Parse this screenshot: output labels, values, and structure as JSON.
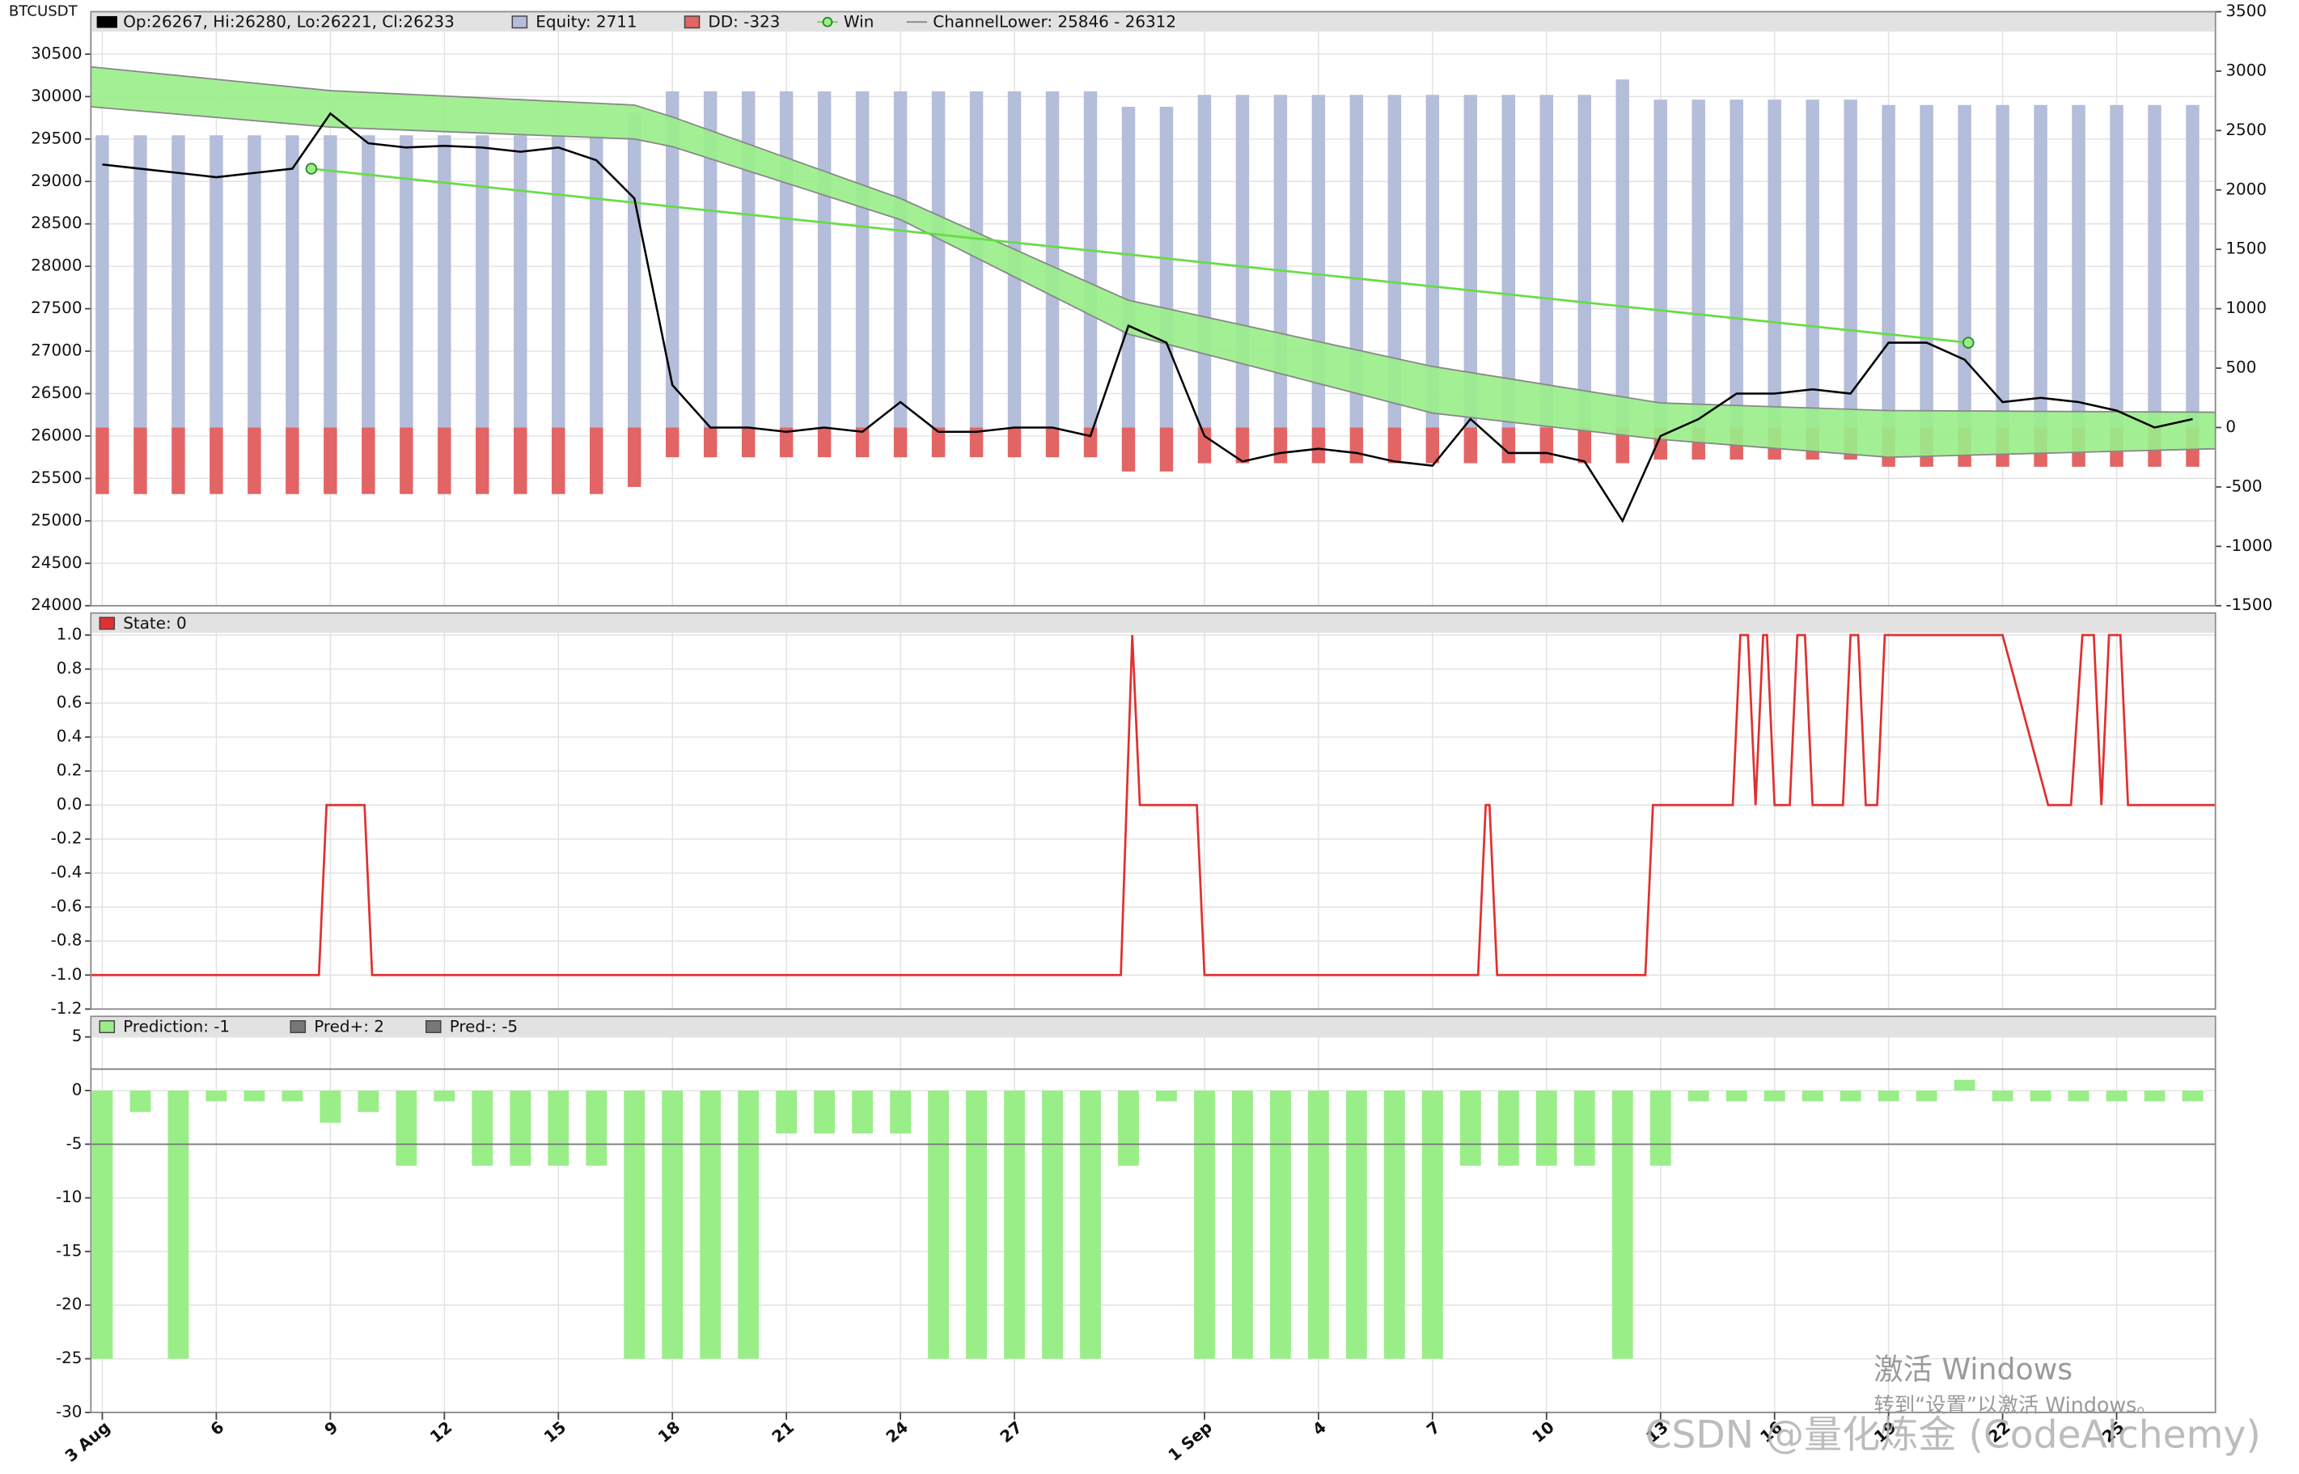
{
  "chart_data": [
    {
      "type": "combo",
      "title": "BTCUSDT",
      "x": [
        0,
        1,
        2,
        3,
        4,
        5,
        6,
        7,
        8,
        9,
        10,
        11,
        12,
        13,
        14,
        15,
        16,
        17,
        18,
        19,
        20,
        21,
        22,
        23,
        24,
        25,
        26,
        27,
        28,
        29,
        30,
        31,
        32,
        33,
        34,
        35,
        36,
        37,
        38,
        39,
        40,
        41,
        42,
        43,
        44,
        45,
        46,
        47,
        48,
        49,
        50,
        51,
        52,
        53,
        54,
        55
      ],
      "ylim": [
        24000,
        31000
      ],
      "yticks": [
        24000,
        24500,
        25000,
        25500,
        26000,
        26500,
        27000,
        27500,
        28000,
        28500,
        29000,
        29500,
        30000,
        30500
      ],
      "y2lim": [
        -1500,
        3500
      ],
      "y2ticks": [
        -1500,
        -1000,
        -500,
        0,
        500,
        1000,
        1500,
        2000,
        2500,
        3000,
        3500
      ],
      "grid": true,
      "series": [
        {
          "name": "Op:26267, Hi:26280, Lo:26221, Cl:26233",
          "kind": "line",
          "color": "#000000",
          "values": [
            29200,
            29150,
            29100,
            29050,
            29100,
            29150,
            29800,
            29450,
            29400,
            29420,
            29400,
            29350,
            29400,
            29250,
            28800,
            26600,
            26100,
            26100,
            26050,
            26100,
            26050,
            26400,
            26050,
            26050,
            26100,
            26100,
            26000,
            27300,
            27100,
            26000,
            25700,
            25800,
            25850,
            25800,
            25700,
            25650,
            26200,
            25800,
            25800,
            25700,
            25000,
            26000,
            26200,
            26500,
            26500,
            26550,
            26500,
            27100,
            27100,
            26900,
            26400,
            26450,
            26400,
            26300,
            26100,
            26200
          ]
        },
        {
          "name": "Equity: 2711",
          "kind": "bar",
          "axis": "y2",
          "color": "#b4bdd9",
          "values": [
            2460,
            2460,
            2460,
            2460,
            2460,
            2460,
            2460,
            2460,
            2460,
            2460,
            2460,
            2460,
            2460,
            2460,
            2650,
            2830,
            2830,
            2830,
            2830,
            2830,
            2830,
            2830,
            2830,
            2830,
            2830,
            2830,
            2830,
            2700,
            2700,
            2800,
            2800,
            2800,
            2800,
            2800,
            2800,
            2800,
            2800,
            2800,
            2800,
            2800,
            2930,
            2760,
            2760,
            2760,
            2760,
            2760,
            2760,
            2715,
            2715,
            2715,
            2715,
            2715,
            2715,
            2715,
            2715,
            2715
          ]
        },
        {
          "name": "DD: -323",
          "kind": "bar",
          "axis": "y2",
          "color": "#e36464",
          "values": [
            -560,
            -560,
            -560,
            -560,
            -560,
            -560,
            -560,
            -560,
            -560,
            -560,
            -560,
            -560,
            -560,
            -560,
            -500,
            -250,
            -250,
            -250,
            -250,
            -250,
            -250,
            -250,
            -250,
            -250,
            -250,
            -250,
            -250,
            -370,
            -370,
            -300,
            -300,
            -300,
            -300,
            -300,
            -300,
            -300,
            -300,
            -300,
            -300,
            -300,
            -300,
            -270,
            -270,
            -270,
            -270,
            -270,
            -270,
            -330,
            -330,
            -330,
            -330,
            -330,
            -330,
            -330,
            -330,
            -330
          ]
        },
        {
          "name": "Win",
          "kind": "marker-line",
          "color": "#66dd44",
          "x": [
            5.5,
            49.1
          ],
          "values": [
            29150,
            27100
          ]
        },
        {
          "name": "ChannelLower: 25846 - 26312",
          "kind": "band",
          "color": "#99ee88",
          "x": [
            -0.3,
            6,
            14,
            15,
            21,
            27,
            35,
            41,
            47,
            55.6
          ],
          "upper": [
            30350,
            30070,
            29900,
            29760,
            28800,
            27600,
            26820,
            26390,
            26300,
            26280
          ],
          "lower": [
            29880,
            29640,
            29500,
            29410,
            28550,
            27200,
            26270,
            25960,
            25750,
            25850
          ]
        }
      ]
    },
    {
      "type": "line",
      "ylim": [
        -1.2,
        1.0
      ],
      "yticks": [
        -1.2,
        {
          "value": -1,
          "label": "-1.0"
        },
        -0.8,
        -0.6,
        -0.4,
        -0.2,
        {
          "value": 0,
          "label": "0.0"
        },
        0.2,
        0.4,
        0.6,
        0.8,
        {
          "value": 1,
          "label": "1.0"
        }
      ],
      "grid": true,
      "series": [
        {
          "name": "State: 0",
          "kind": "line",
          "color": "#e03030",
          "x": [
            -0.3,
            5.7,
            5.9,
            6.9,
            7.1,
            26.8,
            27.1,
            27.3,
            28.8,
            29.0,
            36.2,
            36.4,
            36.5,
            36.7,
            40.6,
            40.8,
            42.9,
            43.1,
            43.3,
            43.5,
            43.7,
            43.8,
            44.0,
            44.4,
            44.6,
            44.8,
            45.0,
            45.8,
            46.0,
            46.2,
            46.4,
            46.7,
            46.9,
            50.0,
            51.2,
            51.8,
            52.1,
            52.4,
            52.6,
            52.8,
            53.1,
            53.3,
            55.6
          ],
          "values": [
            -1,
            -1,
            0,
            0,
            -1,
            -1,
            1,
            0,
            0,
            -1,
            -1,
            0,
            0,
            -1,
            -1,
            0,
            0,
            1,
            1,
            0,
            1,
            1,
            0,
            0,
            1,
            1,
            0,
            0,
            1,
            1,
            0,
            0,
            1,
            1,
            0,
            0,
            1,
            1,
            0,
            1,
            1,
            0,
            0
          ]
        }
      ]
    },
    {
      "type": "bar",
      "x": [
        0,
        1,
        2,
        3,
        4,
        5,
        6,
        7,
        8,
        9,
        10,
        11,
        12,
        13,
        14,
        15,
        16,
        17,
        18,
        19,
        20,
        21,
        22,
        23,
        24,
        25,
        26,
        27,
        28,
        29,
        30,
        31,
        32,
        33,
        34,
        35,
        36,
        37,
        38,
        39,
        40,
        41,
        42,
        43,
        44,
        45,
        46,
        47,
        48,
        49,
        50,
        51,
        52,
        53,
        54,
        55
      ],
      "xlim": [
        -0.3,
        55.6
      ],
      "xticks": [
        {
          "value": 0,
          "label": "3 Aug"
        },
        {
          "value": 3,
          "label": "6"
        },
        {
          "value": 6,
          "label": "9"
        },
        {
          "value": 9,
          "label": "12"
        },
        {
          "value": 12,
          "label": "15"
        },
        {
          "value": 15,
          "label": "18"
        },
        {
          "value": 18,
          "label": "21"
        },
        {
          "value": 21,
          "label": "24"
        },
        {
          "value": 24,
          "label": "27"
        },
        {
          "value": 29,
          "label": "1 Sep"
        },
        {
          "value": 32,
          "label": "4"
        },
        {
          "value": 35,
          "label": "7"
        },
        {
          "value": 38,
          "label": "10"
        },
        {
          "value": 41,
          "label": "13"
        },
        {
          "value": 44,
          "label": "16"
        },
        {
          "value": 47,
          "label": "19"
        },
        {
          "value": 50,
          "label": "22"
        },
        {
          "value": 53,
          "label": "25"
        }
      ],
      "ylim": [
        -30,
        5
      ],
      "yticks": [
        -30,
        -25,
        -20,
        -15,
        -10,
        -5,
        0,
        5
      ],
      "grid": true,
      "series": [
        {
          "name": "Prediction: -1",
          "kind": "bar",
          "color": "#99ee88",
          "values": [
            -25,
            -2,
            -25,
            -1,
            -1,
            -1,
            -3,
            -2,
            -7,
            -1,
            -7,
            -7,
            -7,
            -7,
            -25,
            -25,
            -25,
            -25,
            -4,
            -4,
            -4,
            -4,
            -25,
            -25,
            -25,
            -25,
            -25,
            -7,
            -1,
            -25,
            -25,
            -25,
            -25,
            -25,
            -25,
            -25,
            -7,
            -7,
            -7,
            -7,
            -25,
            -7,
            -1,
            -1,
            -1,
            -1,
            -1,
            -1,
            -1,
            1,
            -1,
            -1,
            -1,
            -1,
            -1,
            -1
          ]
        },
        {
          "name": "Pred+: 2",
          "kind": "hline",
          "color": "#777777",
          "value": 2
        },
        {
          "name": "Pred-: -5",
          "kind": "hline",
          "color": "#777777",
          "value": -5
        }
      ]
    }
  ],
  "overlay": {
    "activate_title": "激活 Windows",
    "activate_hint": "转到“设置”以激活 Windows。",
    "credit": "CSDN @量化炼金 (CodeAlchemy)"
  }
}
